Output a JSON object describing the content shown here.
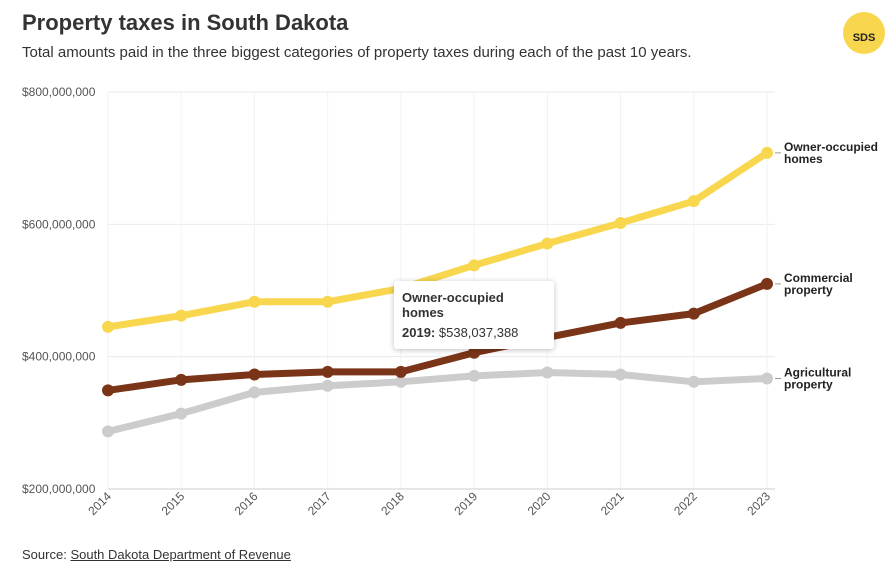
{
  "title": "Property taxes in South Dakota",
  "subtitle": "Total amounts paid in the three biggest categories of property taxes during each of the past 10 years.",
  "logo_text": "SDS",
  "source_label": "Source:",
  "source_link": "South Dakota Department of Revenue",
  "tooltip": {
    "series": "Owner-occupied homes",
    "year": "2019:",
    "value": "$538,037,388"
  },
  "chart_data": {
    "type": "line",
    "title": "Property taxes in South Dakota",
    "x": [
      "2014",
      "2015",
      "2016",
      "2017",
      "2018",
      "2019",
      "2020",
      "2021",
      "2022",
      "2023"
    ],
    "ylim": [
      200000000,
      800000000
    ],
    "yticks": [
      200000000,
      400000000,
      600000000,
      800000000
    ],
    "ytick_labels": [
      "$200,000,000",
      "$400,000,000",
      "$600,000,000",
      "$800,000,000"
    ],
    "grid": true,
    "legend": "right end labels",
    "series": [
      {
        "name": "Owner-occupied homes",
        "label_lines": [
          "Owner-occupied",
          "homes"
        ],
        "color": "#f8d74f",
        "values": [
          445000000,
          462000000,
          483000000,
          483000000,
          503000000,
          538037388,
          571000000,
          602000000,
          635000000,
          708000000
        ]
      },
      {
        "name": "Commercial property",
        "label_lines": [
          "Commercial",
          "property"
        ],
        "color": "#7a3418",
        "values": [
          349000000,
          365000000,
          373000000,
          377000000,
          377000000,
          406000000,
          429000000,
          451000000,
          465000000,
          510000000
        ]
      },
      {
        "name": "Agricultural property",
        "label_lines": [
          "Agricultural",
          "property"
        ],
        "color": "#cccccc",
        "values": [
          287000000,
          314000000,
          346000000,
          356000000,
          362000000,
          371000000,
          376000000,
          373000000,
          362000000,
          367000000
        ]
      }
    ]
  }
}
